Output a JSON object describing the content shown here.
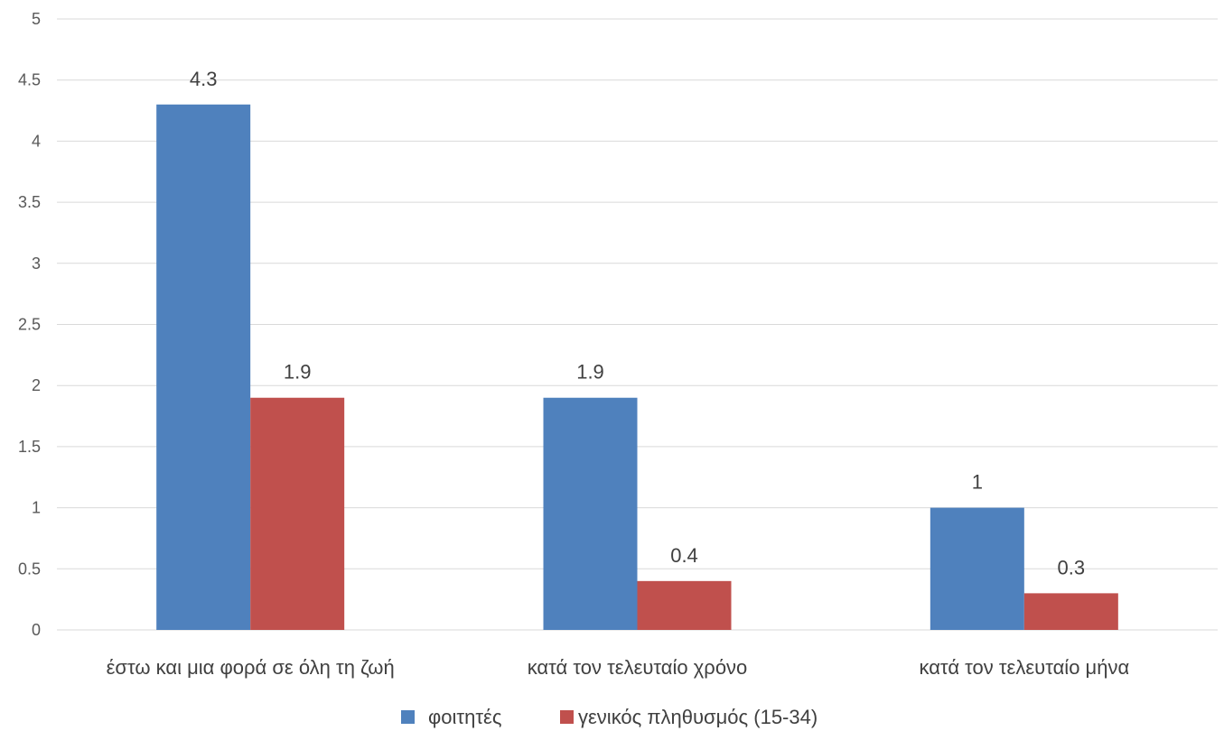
{
  "chart_data": {
    "type": "bar",
    "categories": [
      "έστω και μια φορά σε όλη τη ζωή",
      "κατά τον τελευταίο χρόνο",
      "κατά τον τελευταίο μήνα"
    ],
    "series": [
      {
        "name": "φοιτητές",
        "values": [
          4.3,
          1.9,
          1
        ],
        "value_labels": [
          "4.3",
          "1.9",
          "1"
        ],
        "color": "#4f81bd"
      },
      {
        "name": "γενικός πληθυσμός (15-34)",
        "values": [
          1.9,
          0.4,
          0.3
        ],
        "value_labels": [
          "1.9",
          "0.4",
          "0.3"
        ],
        "color": "#c0504d"
      }
    ],
    "ylim": [
      0,
      5
    ],
    "y_ticks": [
      "0",
      "0.5",
      "1",
      "1.5",
      "2",
      "2.5",
      "3",
      "3.5",
      "4",
      "4.5",
      "5"
    ],
    "grid": true,
    "legend": "bottom",
    "title": "",
    "xlabel": "",
    "ylabel": ""
  }
}
